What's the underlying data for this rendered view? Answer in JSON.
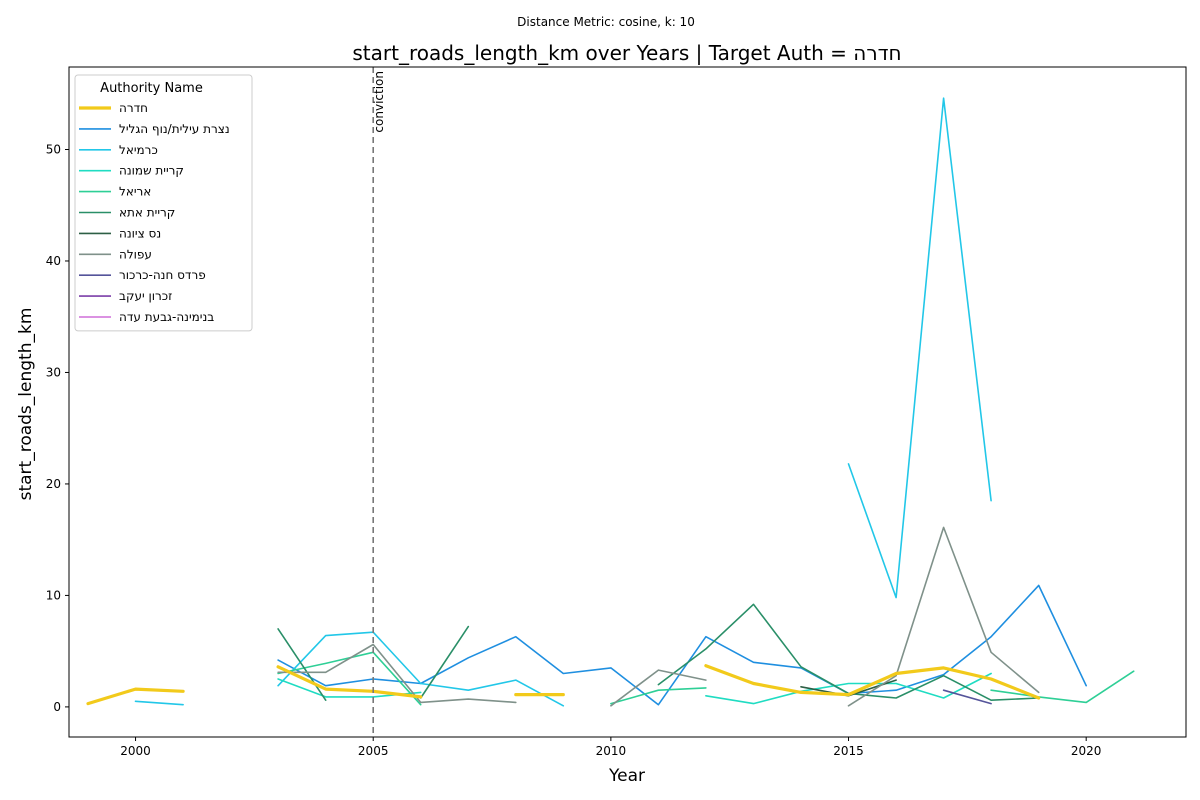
{
  "chart_data": {
    "type": "line",
    "suptitle": "Distance Metric: cosine, k: 10",
    "title": "start_roads_length_km over Years | Target Auth = חדרה",
    "xlabel": "Year",
    "ylabel": "start_roads_length_km",
    "xlim": [
      1998.6,
      2022.1
    ],
    "ylim": [
      -2.7,
      57.4
    ],
    "xticks": [
      2000,
      2005,
      2010,
      2015,
      2020
    ],
    "yticks": [
      0,
      10,
      20,
      30,
      40,
      50
    ],
    "grid": false,
    "legend": {
      "title": "Authority Name",
      "placement": "top-left"
    },
    "annotation": {
      "x": 2005,
      "text": "conviction",
      "style": "dashed"
    },
    "series": [
      {
        "name": "חדרה",
        "color": "#f2ca1b",
        "width": 3.2,
        "x": [
          1999,
          2000,
          2001,
          null,
          2003,
          2004,
          2005,
          2006,
          null,
          2008,
          2009,
          null,
          2012,
          2013,
          2014,
          2015,
          2016,
          2017,
          2018,
          2019
        ],
        "y": [
          0.3,
          1.6,
          1.4,
          null,
          3.6,
          1.6,
          1.4,
          0.9,
          null,
          1.1,
          1.1,
          null,
          3.7,
          2.1,
          1.3,
          1.1,
          3.0,
          3.5,
          2.5,
          0.8
        ]
      },
      {
        "name": "נצרת עילית/נוף הגליל",
        "color": "#1f8fe0",
        "width": 1.6,
        "x": [
          2003,
          2004,
          2005,
          2006,
          2007,
          2008,
          2009,
          2010,
          2011,
          2012,
          2013,
          2014,
          2015,
          2016,
          2017,
          2018,
          2019,
          2020
        ],
        "y": [
          4.2,
          1.9,
          2.5,
          2.1,
          4.4,
          6.3,
          3.0,
          3.5,
          0.2,
          6.3,
          4.0,
          3.5,
          1.2,
          1.5,
          2.9,
          6.3,
          10.9,
          1.9
        ]
      },
      {
        "name": "כרמיאל",
        "color": "#22c7e8",
        "width": 1.6,
        "x": [
          2000,
          2001,
          null,
          2003,
          2004,
          2005,
          2006,
          2007,
          2008,
          2009,
          null,
          2015,
          2016,
          2017,
          2018
        ],
        "y": [
          0.5,
          0.2,
          null,
          1.9,
          6.4,
          6.7,
          2.1,
          1.5,
          2.4,
          0.1,
          null,
          21.8,
          9.8,
          54.6,
          18.5
        ]
      },
      {
        "name": "קריית שמונה",
        "color": "#1fdcc2",
        "width": 1.6,
        "x": [
          2003,
          2004,
          2005,
          2006,
          null,
          2012,
          2013,
          2014,
          2015,
          2016,
          2017,
          2018
        ],
        "y": [
          2.5,
          0.9,
          0.9,
          1.3,
          null,
          1.0,
          0.3,
          1.4,
          2.1,
          2.1,
          0.8,
          3.0
        ]
      },
      {
        "name": "אריאל",
        "color": "#2ecf96",
        "width": 1.6,
        "x": [
          2003,
          2004,
          2005,
          2006,
          null,
          2010,
          2011,
          2012,
          null,
          2018,
          2019,
          2020,
          2021
        ],
        "y": [
          3.0,
          3.9,
          4.9,
          0.2,
          null,
          0.3,
          1.5,
          1.7,
          null,
          1.5,
          0.9,
          0.4,
          3.2
        ]
      },
      {
        "name": "קריית אתא",
        "color": "#2a8f68",
        "width": 1.6,
        "x": [
          2003,
          2004,
          null,
          2006,
          2007,
          null,
          2011,
          2012,
          2013,
          2014,
          2015,
          2016,
          2017,
          2018,
          2019
        ],
        "y": [
          7.0,
          0.6,
          null,
          0.8,
          7.2,
          null,
          2.0,
          5.2,
          9.2,
          3.6,
          1.2,
          0.8,
          2.8,
          0.6,
          0.8
        ]
      },
      {
        "name": "נס ציונה",
        "color": "#2d5f45",
        "width": 1.6,
        "x": [
          2014,
          2015,
          2016
        ],
        "y": [
          1.8,
          1.0,
          2.4
        ]
      },
      {
        "name": "עפולה",
        "color": "#7f918a",
        "width": 1.6,
        "x": [
          2003,
          2004,
          2005,
          2006,
          2007,
          2008,
          null,
          2010,
          2011,
          2012,
          null,
          2015,
          2016,
          2017,
          2018,
          2019
        ],
        "y": [
          3.1,
          3.1,
          5.6,
          0.4,
          0.7,
          0.4,
          null,
          0.1,
          3.3,
          2.4,
          null,
          0.1,
          2.8,
          16.1,
          4.9,
          1.3
        ]
      },
      {
        "name": "פרדס חנה-כרכור",
        "color": "#55549a",
        "width": 1.6,
        "x": [
          2017,
          2018
        ],
        "y": [
          1.5,
          0.3
        ]
      },
      {
        "name": "זכרון יעקב",
        "color": "#7b3ea8",
        "width": 1.6,
        "x": [],
        "y": []
      },
      {
        "name": "בנימינה-גבעת עדה",
        "color": "#cf6fd9",
        "width": 1.6,
        "x": [],
        "y": []
      }
    ]
  }
}
